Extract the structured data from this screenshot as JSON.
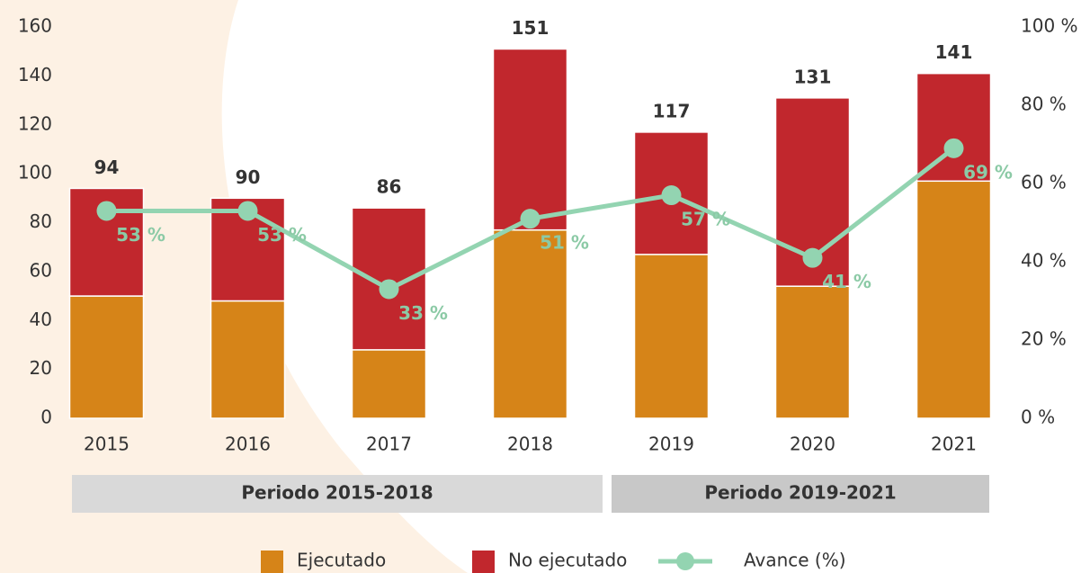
{
  "chart_data": {
    "type": "bar",
    "categories": [
      "2015",
      "2016",
      "2017",
      "2018",
      "2019",
      "2020",
      "2021"
    ],
    "series": [
      {
        "name": "Ejecutado",
        "color": "#d68418",
        "values": [
          50,
          48,
          28,
          77,
          67,
          54,
          97
        ]
      },
      {
        "name": "No ejecutado",
        "color": "#c1272d",
        "values": [
          44,
          42,
          58,
          74,
          50,
          77,
          44
        ]
      },
      {
        "name": "Avance (%)",
        "color": "#93d4b1",
        "type": "line",
        "axis": "y2",
        "values": [
          53,
          53,
          33,
          51,
          57,
          41,
          69
        ],
        "value_labels": [
          "53 %",
          "53 %",
          "33 %",
          "51 %",
          "57 %",
          "41 %",
          "69 %"
        ]
      }
    ],
    "totals": [
      94,
      90,
      86,
      151,
      117,
      131,
      141
    ],
    "periods": [
      "Periodo 2015-2018",
      "Periodo 2019-2021"
    ],
    "stacked": true,
    "ylim": [
      0,
      160
    ],
    "yticks": [
      0,
      20,
      40,
      60,
      80,
      100,
      120,
      140,
      160
    ],
    "y2lim": [
      0,
      100
    ],
    "y2ticks": [
      {
        "value": 0,
        "label": "0 %"
      },
      {
        "value": 20,
        "label": "20 %"
      },
      {
        "value": 40,
        "label": "40 %"
      },
      {
        "value": 60,
        "label": "60 %"
      },
      {
        "value": 80,
        "label": "80 %"
      },
      {
        "value": 100,
        "label": "100 %"
      }
    ],
    "legend": "bottom"
  }
}
